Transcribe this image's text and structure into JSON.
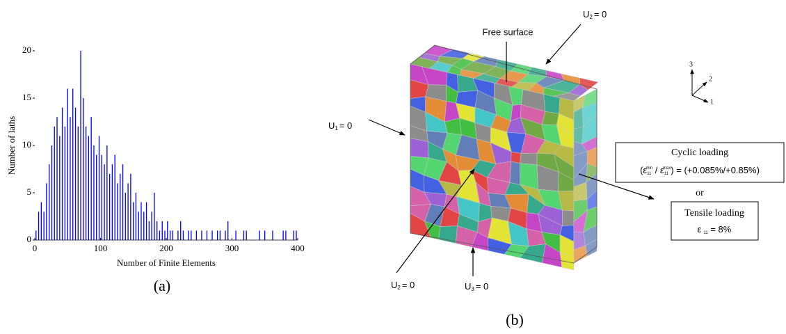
{
  "chart_data": {
    "type": "histogram",
    "ylabel": "Number of laths",
    "xlabel": "Number of Finite Elements",
    "caption": "(a)",
    "color": "#0000ff",
    "bins": [
      0,
      4,
      8,
      12,
      16,
      20,
      24,
      28,
      32,
      36,
      40,
      44,
      48,
      52,
      56,
      60,
      64,
      68,
      72,
      76,
      80,
      84,
      88,
      92,
      96,
      100,
      104,
      108,
      112,
      116,
      120,
      124,
      128,
      132,
      136,
      140,
      144,
      148,
      152,
      156,
      160,
      164,
      168,
      172,
      176,
      180,
      184,
      188,
      192,
      196,
      200,
      204,
      208,
      212,
      216,
      220,
      224,
      228,
      232,
      236,
      240,
      244,
      248,
      252,
      256,
      260,
      264,
      268,
      272,
      276,
      280,
      284,
      288,
      292,
      296,
      300,
      304,
      308,
      312,
      316,
      320,
      324,
      328,
      332,
      336,
      340,
      344,
      348,
      352,
      356,
      360,
      364,
      368,
      372,
      376,
      380,
      384,
      388,
      392,
      396,
      400
    ],
    "values": [
      1,
      3,
      4,
      3,
      6,
      8,
      10,
      12,
      13,
      11,
      14,
      12,
      16,
      13,
      16,
      14,
      12,
      20,
      15,
      12,
      11,
      13,
      10,
      9,
      11,
      9,
      8,
      10,
      7,
      8,
      9,
      6,
      7,
      8,
      5,
      6,
      7,
      4,
      5,
      3,
      4,
      3,
      4,
      2,
      3,
      5,
      2,
      1,
      2,
      1,
      2,
      1,
      1,
      0,
      1,
      2,
      1,
      0,
      1,
      1,
      0,
      1,
      0,
      1,
      0,
      1,
      0,
      1,
      0,
      1,
      1,
      0,
      1,
      2,
      0,
      0,
      1,
      0,
      0,
      1,
      1,
      0,
      0,
      0,
      0,
      1,
      0,
      1,
      0,
      0,
      1,
      0,
      0,
      0,
      1,
      1,
      0,
      0,
      1,
      1
    ],
    "xlim": [
      0,
      400
    ],
    "xticks": [
      0,
      100,
      200,
      300,
      400
    ],
    "ylim": [
      0,
      20
    ],
    "yticks": [
      0,
      5,
      10,
      15,
      20
    ]
  },
  "diagram": {
    "caption": "(b)",
    "free_surface": "Free surface",
    "top_bc": {
      "symbol": "U",
      "sub": "2",
      "rest": "= 0"
    },
    "left_bc": {
      "symbol": "U",
      "sub": "1",
      "rest": "= 0"
    },
    "bottom_bc_front": {
      "symbol": "U",
      "sub": "2",
      "rest": "= 0"
    },
    "bottom_bc": {
      "symbol": "U",
      "sub": "3",
      "rest": "= 0"
    },
    "axes": [
      "1",
      "2",
      "3"
    ],
    "cyclic": {
      "title": "Cyclic loading",
      "open": "(ε",
      "sub1": "11",
      "sup1": "min",
      "mid": " / ε",
      "sub2": "11",
      "sup2": "max",
      "rest": ") = (+0.085%/+0.85%)"
    },
    "or": "or",
    "tensile": {
      "title": "Tensile loading",
      "symbol": "ε",
      "sub": "11",
      "rest": " = 8%"
    }
  }
}
